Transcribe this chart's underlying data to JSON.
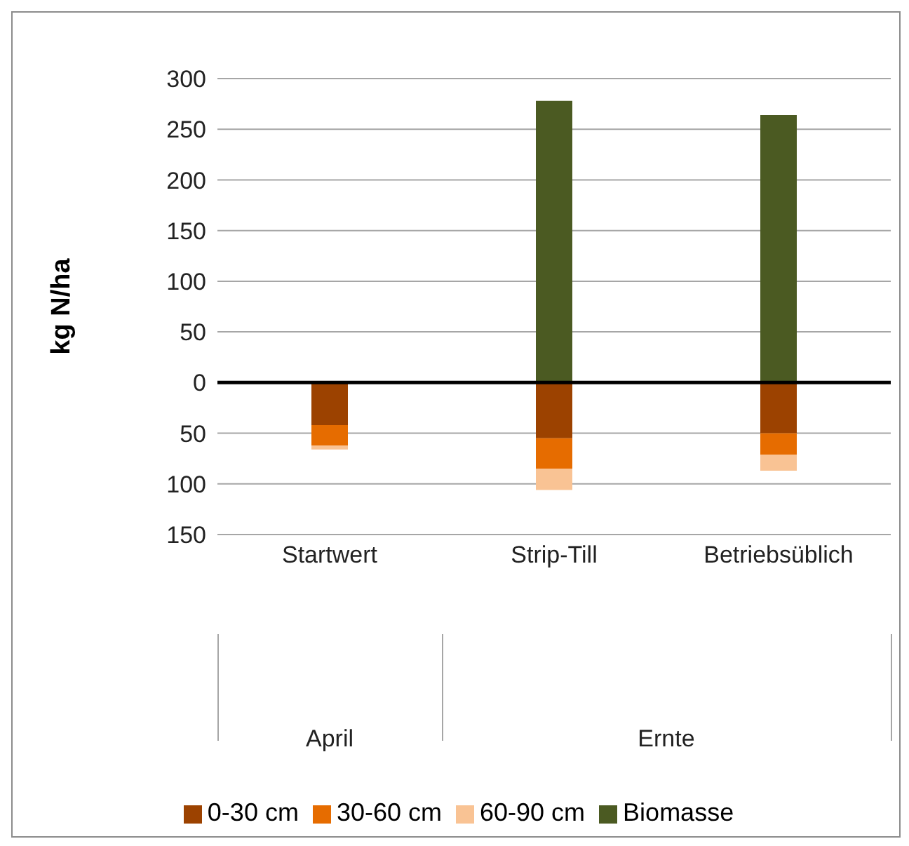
{
  "chart_data": {
    "type": "bar",
    "stacked": true,
    "ylabel": "kg N/ha",
    "categories": [
      "Startwert",
      "Strip-Till",
      "Betriebsüblich"
    ],
    "annotations": [
      "April",
      "Ernte"
    ],
    "series": [
      {
        "name": "0-30 cm",
        "color": "#9c4200",
        "values": [
          -42,
          -55,
          -50
        ]
      },
      {
        "name": "30-60 cm",
        "color": "#e66c00",
        "values": [
          -20,
          -30,
          -21
        ]
      },
      {
        "name": "60-90 cm",
        "color": "#f9c394",
        "values": [
          -4,
          -21,
          -16
        ]
      },
      {
        "name": "Biomasse",
        "color": "#4b5a22",
        "values": [
          null,
          278,
          264
        ]
      }
    ],
    "ylim": [
      -150,
      300
    ],
    "yticks": [
      {
        "value": -150,
        "label": "150"
      },
      {
        "value": -100,
        "label": "100"
      },
      {
        "value": -50,
        "label": "50"
      },
      0,
      50,
      100,
      150,
      200,
      250,
      300
    ],
    "ref_lines": [
      {
        "axis": "y",
        "value": 0,
        "color": "#000000"
      }
    ],
    "grid": "y",
    "legend": "bottom"
  }
}
